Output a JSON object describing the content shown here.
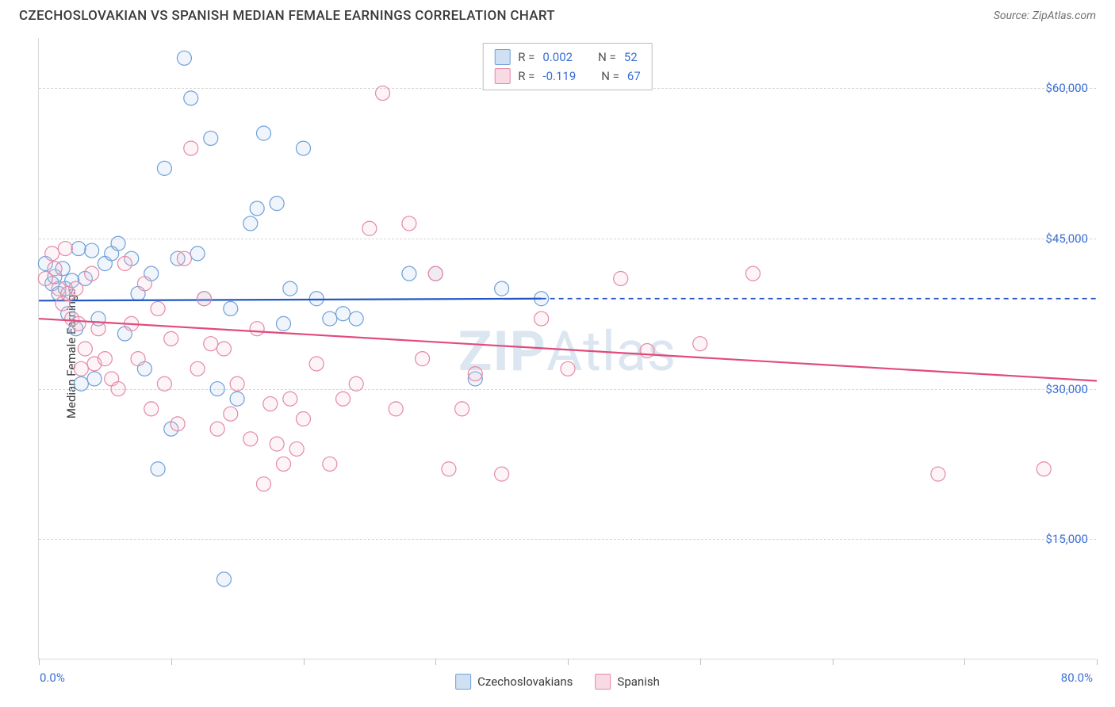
{
  "header": {
    "title": "CZECHOSLOVAKIAN VS SPANISH MEDIAN FEMALE EARNINGS CORRELATION CHART",
    "source": "Source: ZipAtlas.com"
  },
  "ylabel": "Median Female Earnings",
  "watermark_bold": "ZIP",
  "watermark_light": "Atlas",
  "chart": {
    "type": "scatter",
    "xlim": [
      0,
      80
    ],
    "ylim": [
      3000,
      65000
    ],
    "x_axis_min_label": "0.0%",
    "x_axis_max_label": "80.0%",
    "y_ticks": [
      15000,
      30000,
      45000,
      60000
    ],
    "y_tick_labels": [
      "$15,000",
      "$30,000",
      "$45,000",
      "$60,000"
    ],
    "x_ticks": [
      0,
      10,
      20,
      30,
      40,
      50,
      60,
      70,
      80
    ],
    "grid_color": "#d6d6d6",
    "background_color": "#ffffff",
    "marker_radius": 9,
    "marker_stroke_width": 1.2,
    "marker_fill_opacity": 0.18,
    "trend_line_width": 2.2,
    "series": [
      {
        "name": "Czechoslovakians",
        "color_stroke": "#6fa0d8",
        "color_fill": "#a9c8e8",
        "trend_color": "#2457c5",
        "trend_start": [
          0,
          38800
        ],
        "trend_end_solid": [
          38,
          39000
        ],
        "trend_end_dashed": [
          80,
          39000
        ],
        "r_value": "0.002",
        "n_value": "52",
        "points": [
          [
            0.5,
            42500
          ],
          [
            1,
            40500
          ],
          [
            1.2,
            41200
          ],
          [
            1.5,
            39500
          ],
          [
            1.8,
            42000
          ],
          [
            2,
            40000
          ],
          [
            2.2,
            37500
          ],
          [
            2.5,
            40800
          ],
          [
            2.8,
            36000
          ],
          [
            3,
            44000
          ],
          [
            3.2,
            30500
          ],
          [
            3.5,
            41000
          ],
          [
            4,
            43800
          ],
          [
            4.2,
            31000
          ],
          [
            4.5,
            37000
          ],
          [
            5,
            42500
          ],
          [
            5.5,
            43500
          ],
          [
            6,
            44500
          ],
          [
            6.5,
            35500
          ],
          [
            7,
            43000
          ],
          [
            7.5,
            39500
          ],
          [
            8,
            32000
          ],
          [
            8.5,
            41500
          ],
          [
            9,
            22000
          ],
          [
            9.5,
            52000
          ],
          [
            10,
            26000
          ],
          [
            10.5,
            43000
          ],
          [
            11,
            63000
          ],
          [
            11.5,
            59000
          ],
          [
            12,
            43500
          ],
          [
            12.5,
            39000
          ],
          [
            13,
            55000
          ],
          [
            13.5,
            30000
          ],
          [
            14,
            11000
          ],
          [
            14.5,
            38000
          ],
          [
            15,
            29000
          ],
          [
            16,
            46500
          ],
          [
            16.5,
            48000
          ],
          [
            17,
            55500
          ],
          [
            18,
            48500
          ],
          [
            18.5,
            36500
          ],
          [
            19,
            40000
          ],
          [
            20,
            54000
          ],
          [
            21,
            39000
          ],
          [
            22,
            37000
          ],
          [
            23,
            37500
          ],
          [
            24,
            37000
          ],
          [
            28,
            41500
          ],
          [
            30,
            41500
          ],
          [
            33,
            31000
          ],
          [
            35,
            40000
          ],
          [
            38,
            39000
          ]
        ]
      },
      {
        "name": "Spanish",
        "color_stroke": "#e589a6",
        "color_fill": "#f4c0d0",
        "trend_color": "#e14b7a",
        "trend_start": [
          0,
          37000
        ],
        "trend_end_solid": [
          80,
          30800
        ],
        "trend_end_dashed": null,
        "r_value": "-0.119",
        "n_value": "67",
        "points": [
          [
            0.5,
            41000
          ],
          [
            1,
            43500
          ],
          [
            1.2,
            42000
          ],
          [
            1.5,
            40000
          ],
          [
            1.8,
            38500
          ],
          [
            2,
            44000
          ],
          [
            2.2,
            39500
          ],
          [
            2.5,
            37000
          ],
          [
            2.8,
            40000
          ],
          [
            3,
            36500
          ],
          [
            3.2,
            32000
          ],
          [
            3.5,
            34000
          ],
          [
            4,
            41500
          ],
          [
            4.2,
            32500
          ],
          [
            4.5,
            36000
          ],
          [
            5,
            33000
          ],
          [
            5.5,
            31000
          ],
          [
            6,
            30000
          ],
          [
            6.5,
            42500
          ],
          [
            7,
            36500
          ],
          [
            7.5,
            33000
          ],
          [
            8,
            40500
          ],
          [
            8.5,
            28000
          ],
          [
            9,
            38000
          ],
          [
            9.5,
            30500
          ],
          [
            10,
            35000
          ],
          [
            10.5,
            26500
          ],
          [
            11,
            43000
          ],
          [
            11.5,
            54000
          ],
          [
            12,
            32000
          ],
          [
            12.5,
            39000
          ],
          [
            13,
            34500
          ],
          [
            13.5,
            26000
          ],
          [
            14,
            34000
          ],
          [
            14.5,
            27500
          ],
          [
            15,
            30500
          ],
          [
            16,
            25000
          ],
          [
            16.5,
            36000
          ],
          [
            17,
            20500
          ],
          [
            17.5,
            28500
          ],
          [
            18,
            24500
          ],
          [
            18.5,
            22500
          ],
          [
            19,
            29000
          ],
          [
            19.5,
            24000
          ],
          [
            20,
            27000
          ],
          [
            21,
            32500
          ],
          [
            22,
            22500
          ],
          [
            23,
            29000
          ],
          [
            24,
            30500
          ],
          [
            25,
            46000
          ],
          [
            26,
            59500
          ],
          [
            27,
            28000
          ],
          [
            28,
            46500
          ],
          [
            29,
            33000
          ],
          [
            30,
            41500
          ],
          [
            31,
            22000
          ],
          [
            32,
            28000
          ],
          [
            33,
            31500
          ],
          [
            35,
            21500
          ],
          [
            38,
            37000
          ],
          [
            40,
            32000
          ],
          [
            44,
            41000
          ],
          [
            46,
            33800
          ],
          [
            50,
            34500
          ],
          [
            54,
            41500
          ],
          [
            68,
            21500
          ],
          [
            76,
            22000
          ]
        ]
      }
    ]
  },
  "legend_top": {
    "rows": [
      {
        "swatch_stroke": "#6fa0d8",
        "swatch_fill": "#cfe0f2",
        "r_label": "R =",
        "r_val": "0.002",
        "n_label": "N =",
        "n_val": "52"
      },
      {
        "swatch_stroke": "#e589a6",
        "swatch_fill": "#f7dae3",
        "r_label": "R =",
        "r_val": "-0.119",
        "n_label": "N =",
        "n_val": "67"
      }
    ]
  },
  "legend_bottom": [
    {
      "swatch_stroke": "#6fa0d8",
      "swatch_fill": "#cfe0f2",
      "label": "Czechoslovakians"
    },
    {
      "swatch_stroke": "#e589a6",
      "swatch_fill": "#f7dae3",
      "label": "Spanish"
    }
  ]
}
